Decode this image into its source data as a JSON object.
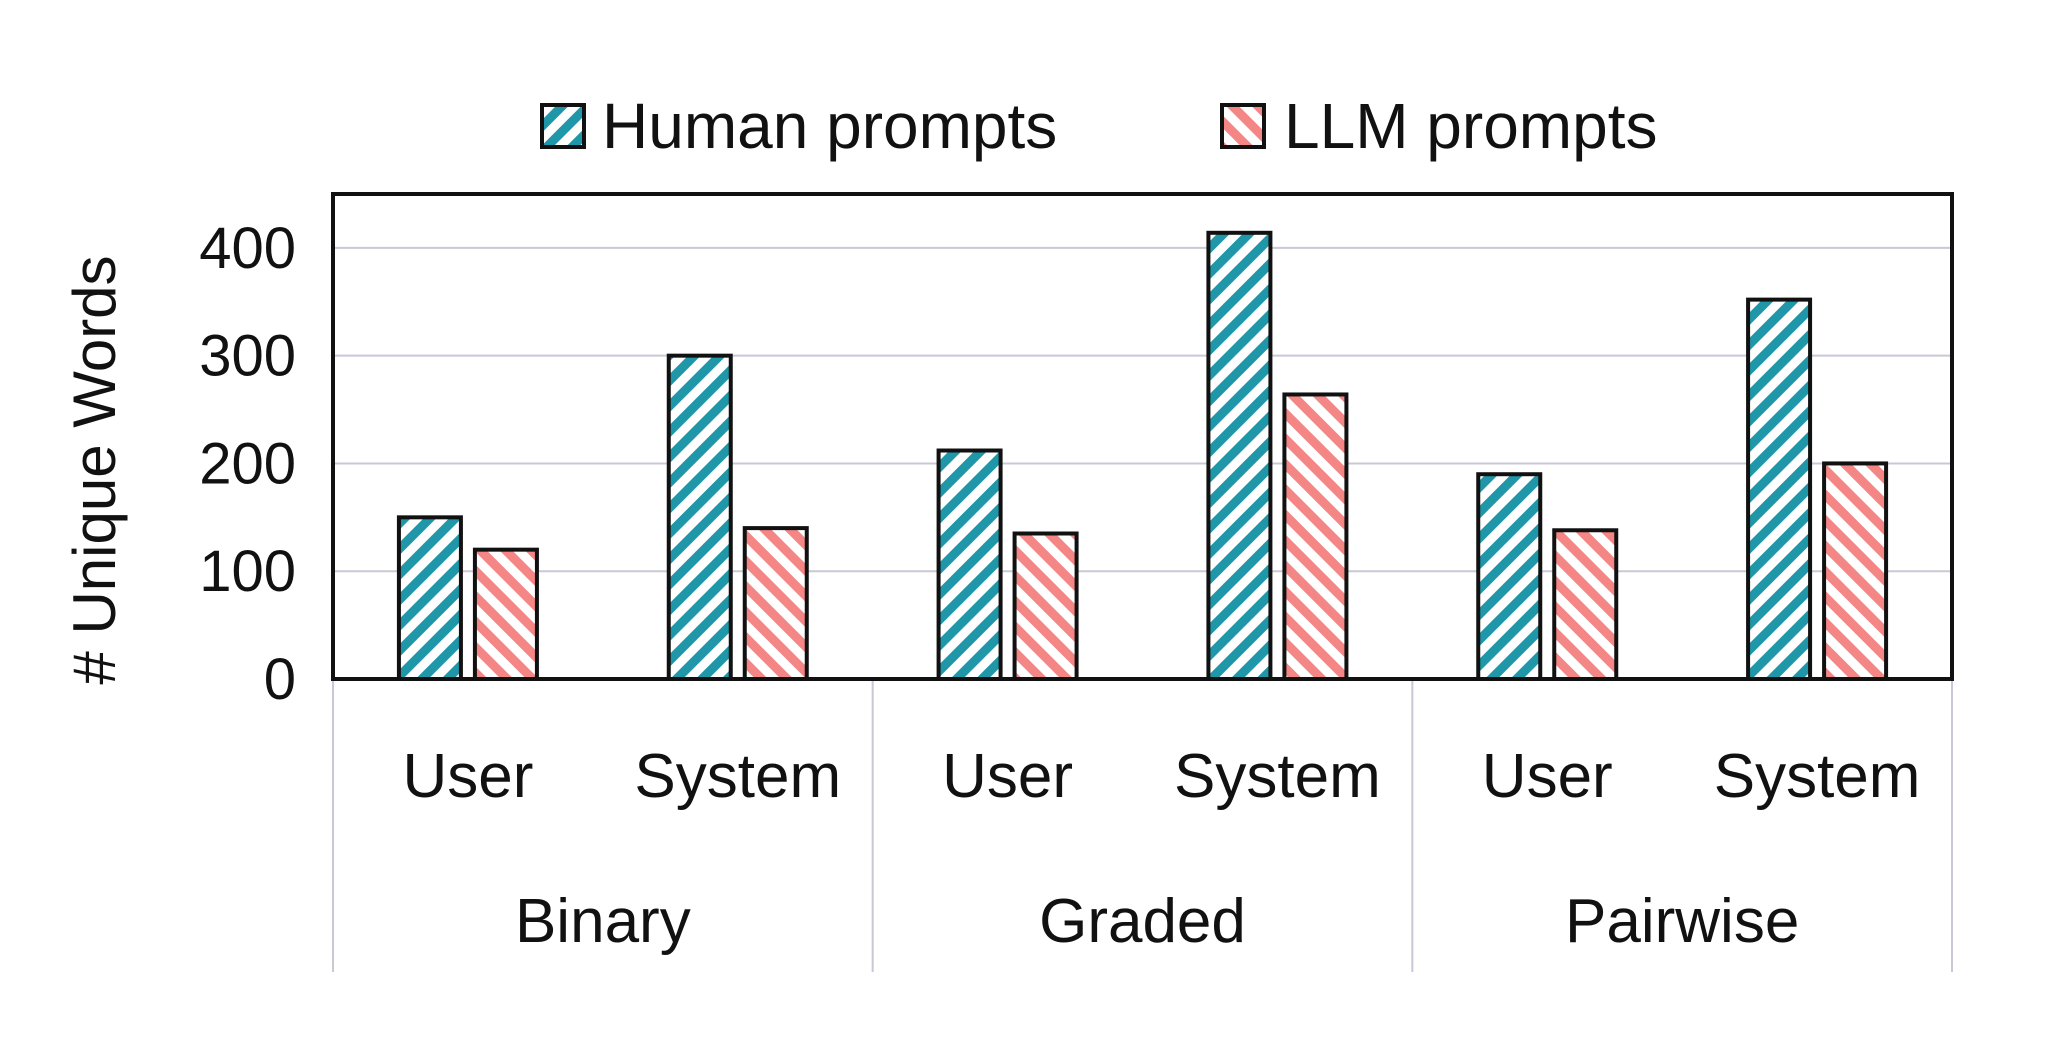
{
  "chart_data": {
    "type": "bar",
    "title": "",
    "xlabel": "",
    "ylabel": "# Unique Words",
    "ylim": [
      0,
      450
    ],
    "yticks": [
      0,
      100,
      200,
      300,
      400
    ],
    "grid": true,
    "legend_position": "top",
    "groups": [
      {
        "label": "Binary",
        "categories": [
          "User",
          "System"
        ]
      },
      {
        "label": "Graded",
        "categories": [
          "User",
          "System"
        ]
      },
      {
        "label": "Pairwise",
        "categories": [
          "User",
          "System"
        ]
      }
    ],
    "series": [
      {
        "name": "Human prompts",
        "color": "#1f97a8",
        "values": [
          150,
          300,
          212,
          414,
          190,
          352
        ]
      },
      {
        "name": "LLM prompts",
        "color": "#f48686",
        "values": [
          120,
          140,
          135,
          264,
          138,
          200
        ]
      }
    ]
  }
}
